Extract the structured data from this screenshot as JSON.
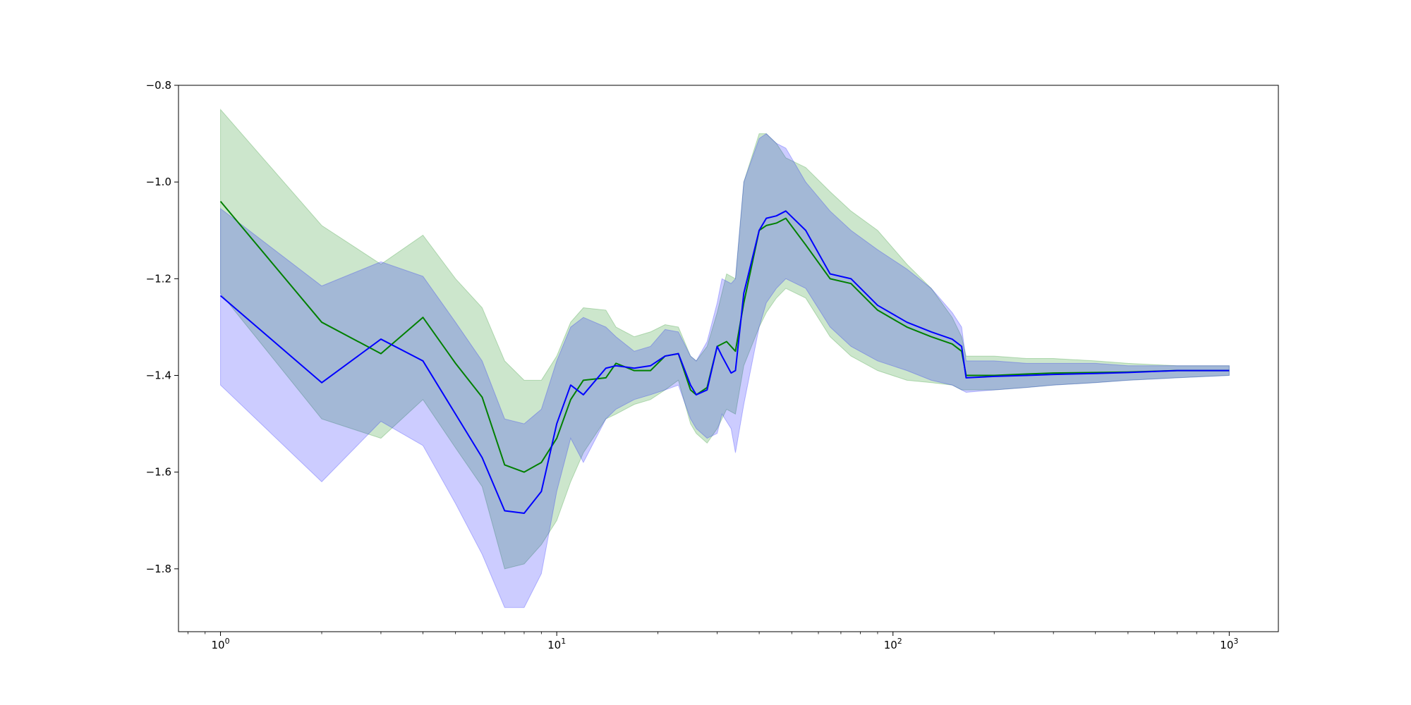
{
  "chart_data": {
    "type": "line",
    "title": "",
    "xlabel": "",
    "ylabel": "",
    "xscale": "log",
    "xlim": [
      0.75,
      1400
    ],
    "ylim": [
      -1.93,
      -0.8
    ],
    "grid": false,
    "legend": "none",
    "x_ticks": [
      {
        "value": 1,
        "base": "10",
        "exp": "0"
      },
      {
        "value": 10,
        "base": "10",
        "exp": "1"
      },
      {
        "value": 100,
        "base": "10",
        "exp": "2"
      },
      {
        "value": 1000,
        "base": "10",
        "exp": "3"
      }
    ],
    "y_ticks": [
      {
        "value": -0.8,
        "label": "−0.8"
      },
      {
        "value": -1.0,
        "label": "−1.0"
      },
      {
        "value": -1.2,
        "label": "−1.2"
      },
      {
        "value": -1.4,
        "label": "−1.4"
      },
      {
        "value": -1.6,
        "label": "−1.6"
      },
      {
        "value": -1.8,
        "label": "−1.8"
      }
    ],
    "series": [
      {
        "color": "#008000",
        "band_color": "#008000",
        "band_opacity": 0.2,
        "x": [
          1,
          2,
          3,
          4,
          5,
          6,
          7,
          8,
          9,
          10,
          11,
          12,
          14,
          15,
          17,
          19,
          21,
          23,
          25,
          26,
          28,
          30,
          32,
          34,
          36,
          40,
          42,
          45,
          48,
          55,
          65,
          75,
          90,
          110,
          130,
          150,
          160,
          165,
          200,
          250,
          300,
          400,
          500,
          700,
          1000
        ],
        "mean": [
          -1.04,
          -1.29,
          -1.355,
          -1.28,
          -1.375,
          -1.445,
          -1.585,
          -1.6,
          -1.58,
          -1.53,
          -1.45,
          -1.41,
          -1.405,
          -1.375,
          -1.39,
          -1.39,
          -1.36,
          -1.355,
          -1.43,
          -1.44,
          -1.425,
          -1.34,
          -1.33,
          -1.35,
          -1.25,
          -1.1,
          -1.09,
          -1.085,
          -1.075,
          -1.13,
          -1.2,
          -1.21,
          -1.265,
          -1.3,
          -1.32,
          -1.335,
          -1.35,
          -1.4,
          -1.4,
          -1.397,
          -1.395,
          -1.394,
          -1.393,
          -1.39,
          -1.39
        ],
        "upper": [
          -0.85,
          -1.09,
          -1.17,
          -1.11,
          -1.2,
          -1.26,
          -1.37,
          -1.41,
          -1.41,
          -1.36,
          -1.29,
          -1.26,
          -1.265,
          -1.3,
          -1.32,
          -1.31,
          -1.295,
          -1.3,
          -1.36,
          -1.37,
          -1.34,
          -1.27,
          -1.19,
          -1.2,
          -1.0,
          -0.9,
          -0.9,
          -0.92,
          -0.95,
          -0.97,
          -1.02,
          -1.06,
          -1.1,
          -1.17,
          -1.22,
          -1.28,
          -1.32,
          -1.36,
          -1.36,
          -1.365,
          -1.365,
          -1.37,
          -1.375,
          -1.38,
          -1.38
        ],
        "lower": [
          -1.23,
          -1.49,
          -1.53,
          -1.45,
          -1.55,
          -1.63,
          -1.8,
          -1.79,
          -1.75,
          -1.7,
          -1.62,
          -1.56,
          -1.49,
          -1.48,
          -1.46,
          -1.45,
          -1.43,
          -1.41,
          -1.5,
          -1.52,
          -1.54,
          -1.51,
          -1.47,
          -1.48,
          -1.38,
          -1.3,
          -1.27,
          -1.24,
          -1.22,
          -1.24,
          -1.32,
          -1.36,
          -1.39,
          -1.41,
          -1.415,
          -1.42,
          -1.43,
          -1.43,
          -1.43,
          -1.425,
          -1.42,
          -1.415,
          -1.41,
          -1.405,
          -1.4
        ]
      },
      {
        "color": "#0000ff",
        "band_color": "#0000ff",
        "band_opacity": 0.2,
        "x": [
          1,
          2,
          3,
          4,
          5,
          6,
          7,
          8,
          9,
          10,
          11,
          12,
          14,
          15,
          17,
          19,
          21,
          23,
          25,
          26,
          28,
          30,
          31,
          33,
          34,
          36,
          40,
          42,
          45,
          48,
          55,
          65,
          75,
          90,
          110,
          130,
          150,
          160,
          165,
          200,
          250,
          300,
          400,
          500,
          700,
          1000
        ],
        "mean": [
          -1.235,
          -1.415,
          -1.325,
          -1.37,
          -1.48,
          -1.57,
          -1.68,
          -1.685,
          -1.64,
          -1.5,
          -1.42,
          -1.44,
          -1.385,
          -1.38,
          -1.385,
          -1.38,
          -1.36,
          -1.355,
          -1.42,
          -1.44,
          -1.43,
          -1.34,
          -1.36,
          -1.395,
          -1.39,
          -1.23,
          -1.1,
          -1.075,
          -1.07,
          -1.06,
          -1.1,
          -1.19,
          -1.2,
          -1.255,
          -1.29,
          -1.31,
          -1.325,
          -1.34,
          -1.405,
          -1.402,
          -1.4,
          -1.398,
          -1.396,
          -1.394,
          -1.39,
          -1.39
        ],
        "upper": [
          -1.055,
          -1.215,
          -1.165,
          -1.195,
          -1.29,
          -1.37,
          -1.49,
          -1.5,
          -1.47,
          -1.37,
          -1.3,
          -1.28,
          -1.3,
          -1.32,
          -1.35,
          -1.34,
          -1.305,
          -1.31,
          -1.36,
          -1.37,
          -1.33,
          -1.25,
          -1.2,
          -1.21,
          -1.2,
          -1.0,
          -0.91,
          -0.9,
          -0.92,
          -0.93,
          -1.0,
          -1.06,
          -1.1,
          -1.14,
          -1.18,
          -1.22,
          -1.27,
          -1.3,
          -1.37,
          -1.37,
          -1.375,
          -1.375,
          -1.375,
          -1.38,
          -1.38,
          -1.38
        ],
        "lower": [
          -1.42,
          -1.62,
          -1.495,
          -1.545,
          -1.665,
          -1.77,
          -1.88,
          -1.88,
          -1.81,
          -1.64,
          -1.53,
          -1.58,
          -1.49,
          -1.47,
          -1.45,
          -1.44,
          -1.43,
          -1.42,
          -1.49,
          -1.51,
          -1.53,
          -1.52,
          -1.48,
          -1.51,
          -1.56,
          -1.46,
          -1.3,
          -1.25,
          -1.22,
          -1.2,
          -1.22,
          -1.3,
          -1.34,
          -1.37,
          -1.39,
          -1.41,
          -1.42,
          -1.43,
          -1.435,
          -1.43,
          -1.425,
          -1.42,
          -1.415,
          -1.41,
          -1.405,
          -1.4
        ]
      }
    ]
  }
}
